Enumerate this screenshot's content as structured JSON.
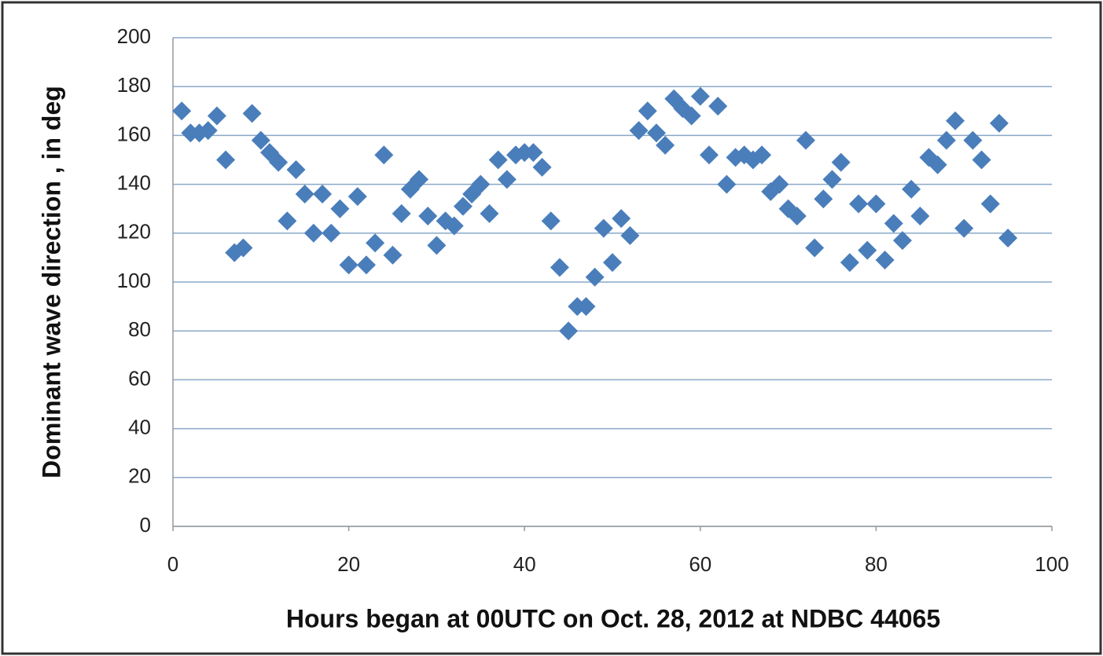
{
  "chart_data": {
    "type": "scatter",
    "x_label": "Hours began at 00UTC on Oct. 28, 2012 at NDBC  44065",
    "y_label": "Dominant wave direction , in deg",
    "xlim": [
      0,
      100
    ],
    "xticks": [
      0,
      20,
      40,
      60,
      80,
      100
    ],
    "ylim": [
      0,
      200
    ],
    "yticks": [
      0,
      20,
      40,
      60,
      80,
      100,
      120,
      140,
      160,
      180,
      200
    ],
    "grid": true,
    "series": [
      {
        "color": "#4a7ebb",
        "x": [
          1,
          2,
          3,
          4,
          5,
          6,
          7,
          8,
          9,
          10,
          11,
          12,
          13,
          14,
          15,
          16,
          17,
          18,
          19,
          20,
          21,
          22,
          23,
          24,
          25,
          26,
          27,
          28,
          29,
          30,
          31,
          32,
          33,
          34,
          35,
          36,
          37,
          38,
          39,
          40,
          41,
          42,
          43,
          44,
          45,
          46,
          47,
          48,
          49,
          50,
          51,
          52,
          53,
          54,
          55,
          56,
          57,
          58,
          59,
          60,
          61,
          62,
          63,
          64,
          65,
          66,
          67,
          68,
          69,
          70,
          71,
          72,
          73,
          74,
          75,
          76,
          77,
          78,
          79,
          80,
          81,
          82,
          83,
          84,
          85,
          86,
          87,
          88,
          89,
          90,
          91,
          92,
          93,
          94,
          95
        ],
        "values": [
          170,
          161,
          161,
          162,
          168,
          150,
          112,
          114,
          169,
          158,
          153,
          149,
          125,
          146,
          136,
          120,
          136,
          120,
          130,
          107,
          135,
          107,
          116,
          152,
          111,
          128,
          138,
          142,
          127,
          115,
          125,
          123,
          131,
          136,
          140,
          128,
          150,
          142,
          152,
          153,
          153,
          147,
          125,
          106,
          80,
          90,
          90,
          102,
          122,
          108,
          126,
          119,
          162,
          170,
          161,
          156,
          175,
          171,
          168,
          176,
          152,
          172,
          140,
          151,
          152,
          150,
          152,
          137,
          140,
          130,
          127,
          158,
          114,
          134,
          142,
          149,
          108,
          132,
          113,
          132,
          109,
          124,
          117,
          138,
          127,
          151,
          148,
          158,
          166,
          122,
          158,
          150,
          132,
          165,
          118
        ]
      }
    ]
  }
}
